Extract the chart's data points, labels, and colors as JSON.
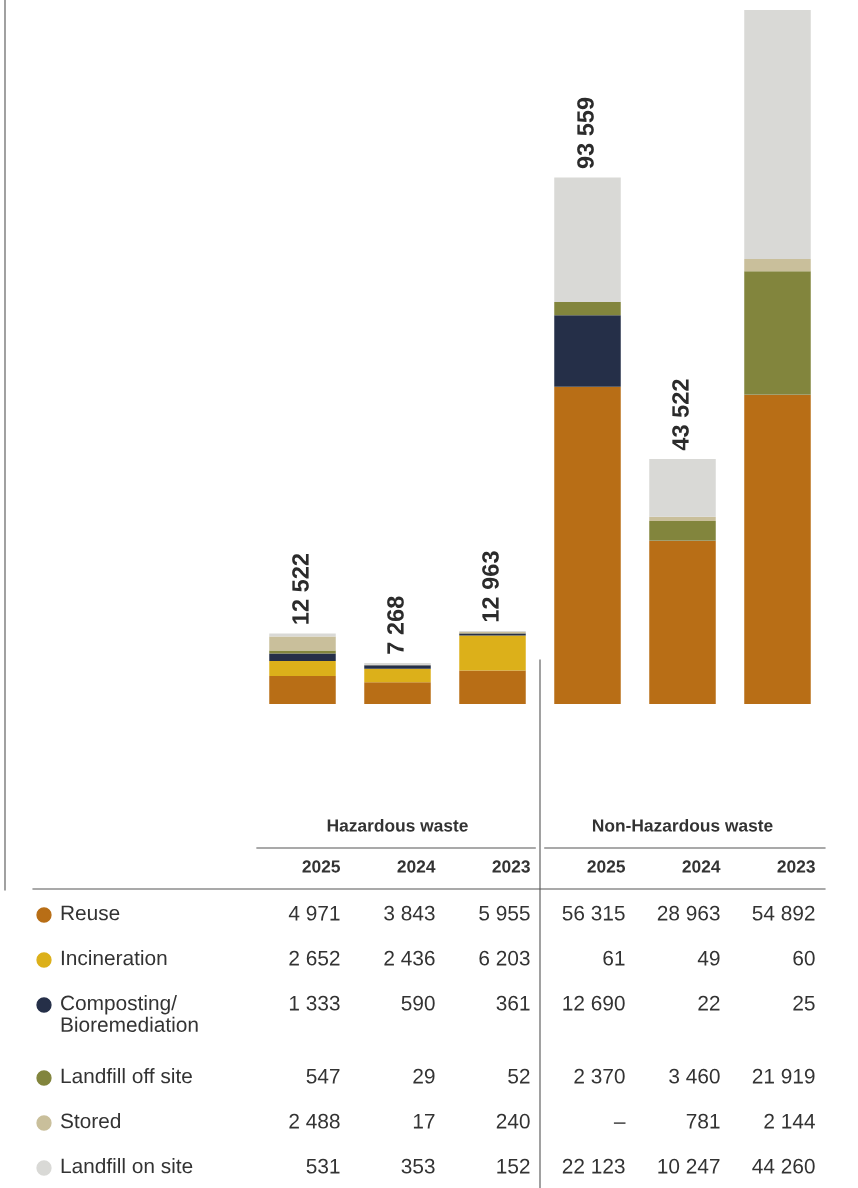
{
  "chart_data": {
    "type": "bar",
    "stacked": true,
    "tick_labels": false,
    "data_labels": true,
    "categories": [
      "2025",
      "2024",
      "2023",
      "2025",
      "2024",
      "2023"
    ],
    "annotations": [
      "Hazardous waste",
      "Non-Hazardous waste"
    ],
    "series": [
      {
        "name": "Reuse",
        "color": "#b86e16",
        "values": [
          4971,
          3843,
          5955,
          56315,
          28963,
          54892
        ],
        "value_labels": [
          "4 971",
          "3 843",
          "5 955",
          "56 315",
          "28 963",
          "54 892"
        ]
      },
      {
        "name": "Incineration",
        "color": "#dcb01a",
        "values": [
          2652,
          2436,
          6203,
          61,
          49,
          60
        ],
        "value_labels": [
          "2 652",
          "2 436",
          "6 203",
          "61",
          "49",
          "60"
        ]
      },
      {
        "name": "Composting/\nBioremediation",
        "color": "#252f48",
        "values": [
          1333,
          590,
          361,
          12690,
          22,
          25
        ],
        "value_labels": [
          "1 333",
          "590",
          "361",
          "12 690",
          "22",
          "25"
        ]
      },
      {
        "name": "Landfill off site",
        "color": "#82853d",
        "values": [
          547,
          29,
          52,
          2370,
          3460,
          21919
        ],
        "value_labels": [
          "547",
          "29",
          "52",
          "2 370",
          "3 460",
          "21 919"
        ]
      },
      {
        "name": "Stored",
        "color": "#c9bf9b",
        "values": [
          2488,
          17,
          240,
          null,
          781,
          2144
        ],
        "value_labels": [
          "2 488",
          "17",
          "240",
          "–",
          "781",
          "2 144"
        ]
      },
      {
        "name": "Landfill on site",
        "color": "#d9d9d6",
        "values": [
          531,
          353,
          152,
          22123,
          10247,
          44260
        ],
        "value_labels": [
          "531",
          "353",
          "152",
          "22 123",
          "10 247",
          "44 260"
        ]
      }
    ],
    "legend": "bottom left",
    "totals": [
      "12 522",
      "7 268",
      "12 963",
      "93 559",
      "43 522",
      null
    ]
  }
}
